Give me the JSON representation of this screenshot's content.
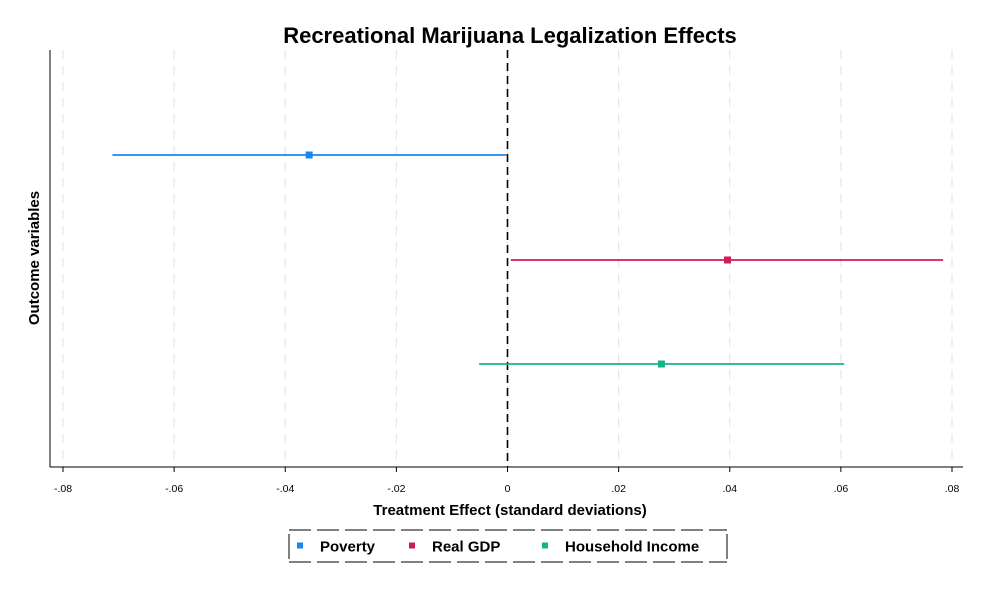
{
  "chart_data": {
    "type": "coefficient-plot",
    "title": "Recreational Marijuana Legalization Effects",
    "xlabel": "Treatment Effect (standard deviations)",
    "ylabel": "Outcome variables",
    "xlim": [
      -0.08,
      0.08
    ],
    "xticks": [
      -0.08,
      -0.06,
      -0.04,
      -0.02,
      0,
      0.02,
      0.04,
      0.06,
      0.08
    ],
    "xtick_labels": [
      "-.08",
      "-.06",
      "-.04",
      "-.02",
      "0",
      ".02",
      ".04",
      ".06",
      ".08"
    ],
    "grid": "vertical dashed",
    "reference_line": 0,
    "legend_position": "bottom",
    "series": [
      {
        "name": "Poverty",
        "estimate": -0.0357,
        "ci_low": -0.0711,
        "ci_high": -0.0002,
        "color": "#1a86ee"
      },
      {
        "name": "Real GDP",
        "estimate": 0.0396,
        "ci_low": 0.0006,
        "ci_high": 0.0784,
        "color": "#d01c55"
      },
      {
        "name": "Household Income",
        "estimate": 0.0277,
        "ci_low": -0.0051,
        "ci_high": 0.0606,
        "color": "#17b487"
      }
    ]
  }
}
